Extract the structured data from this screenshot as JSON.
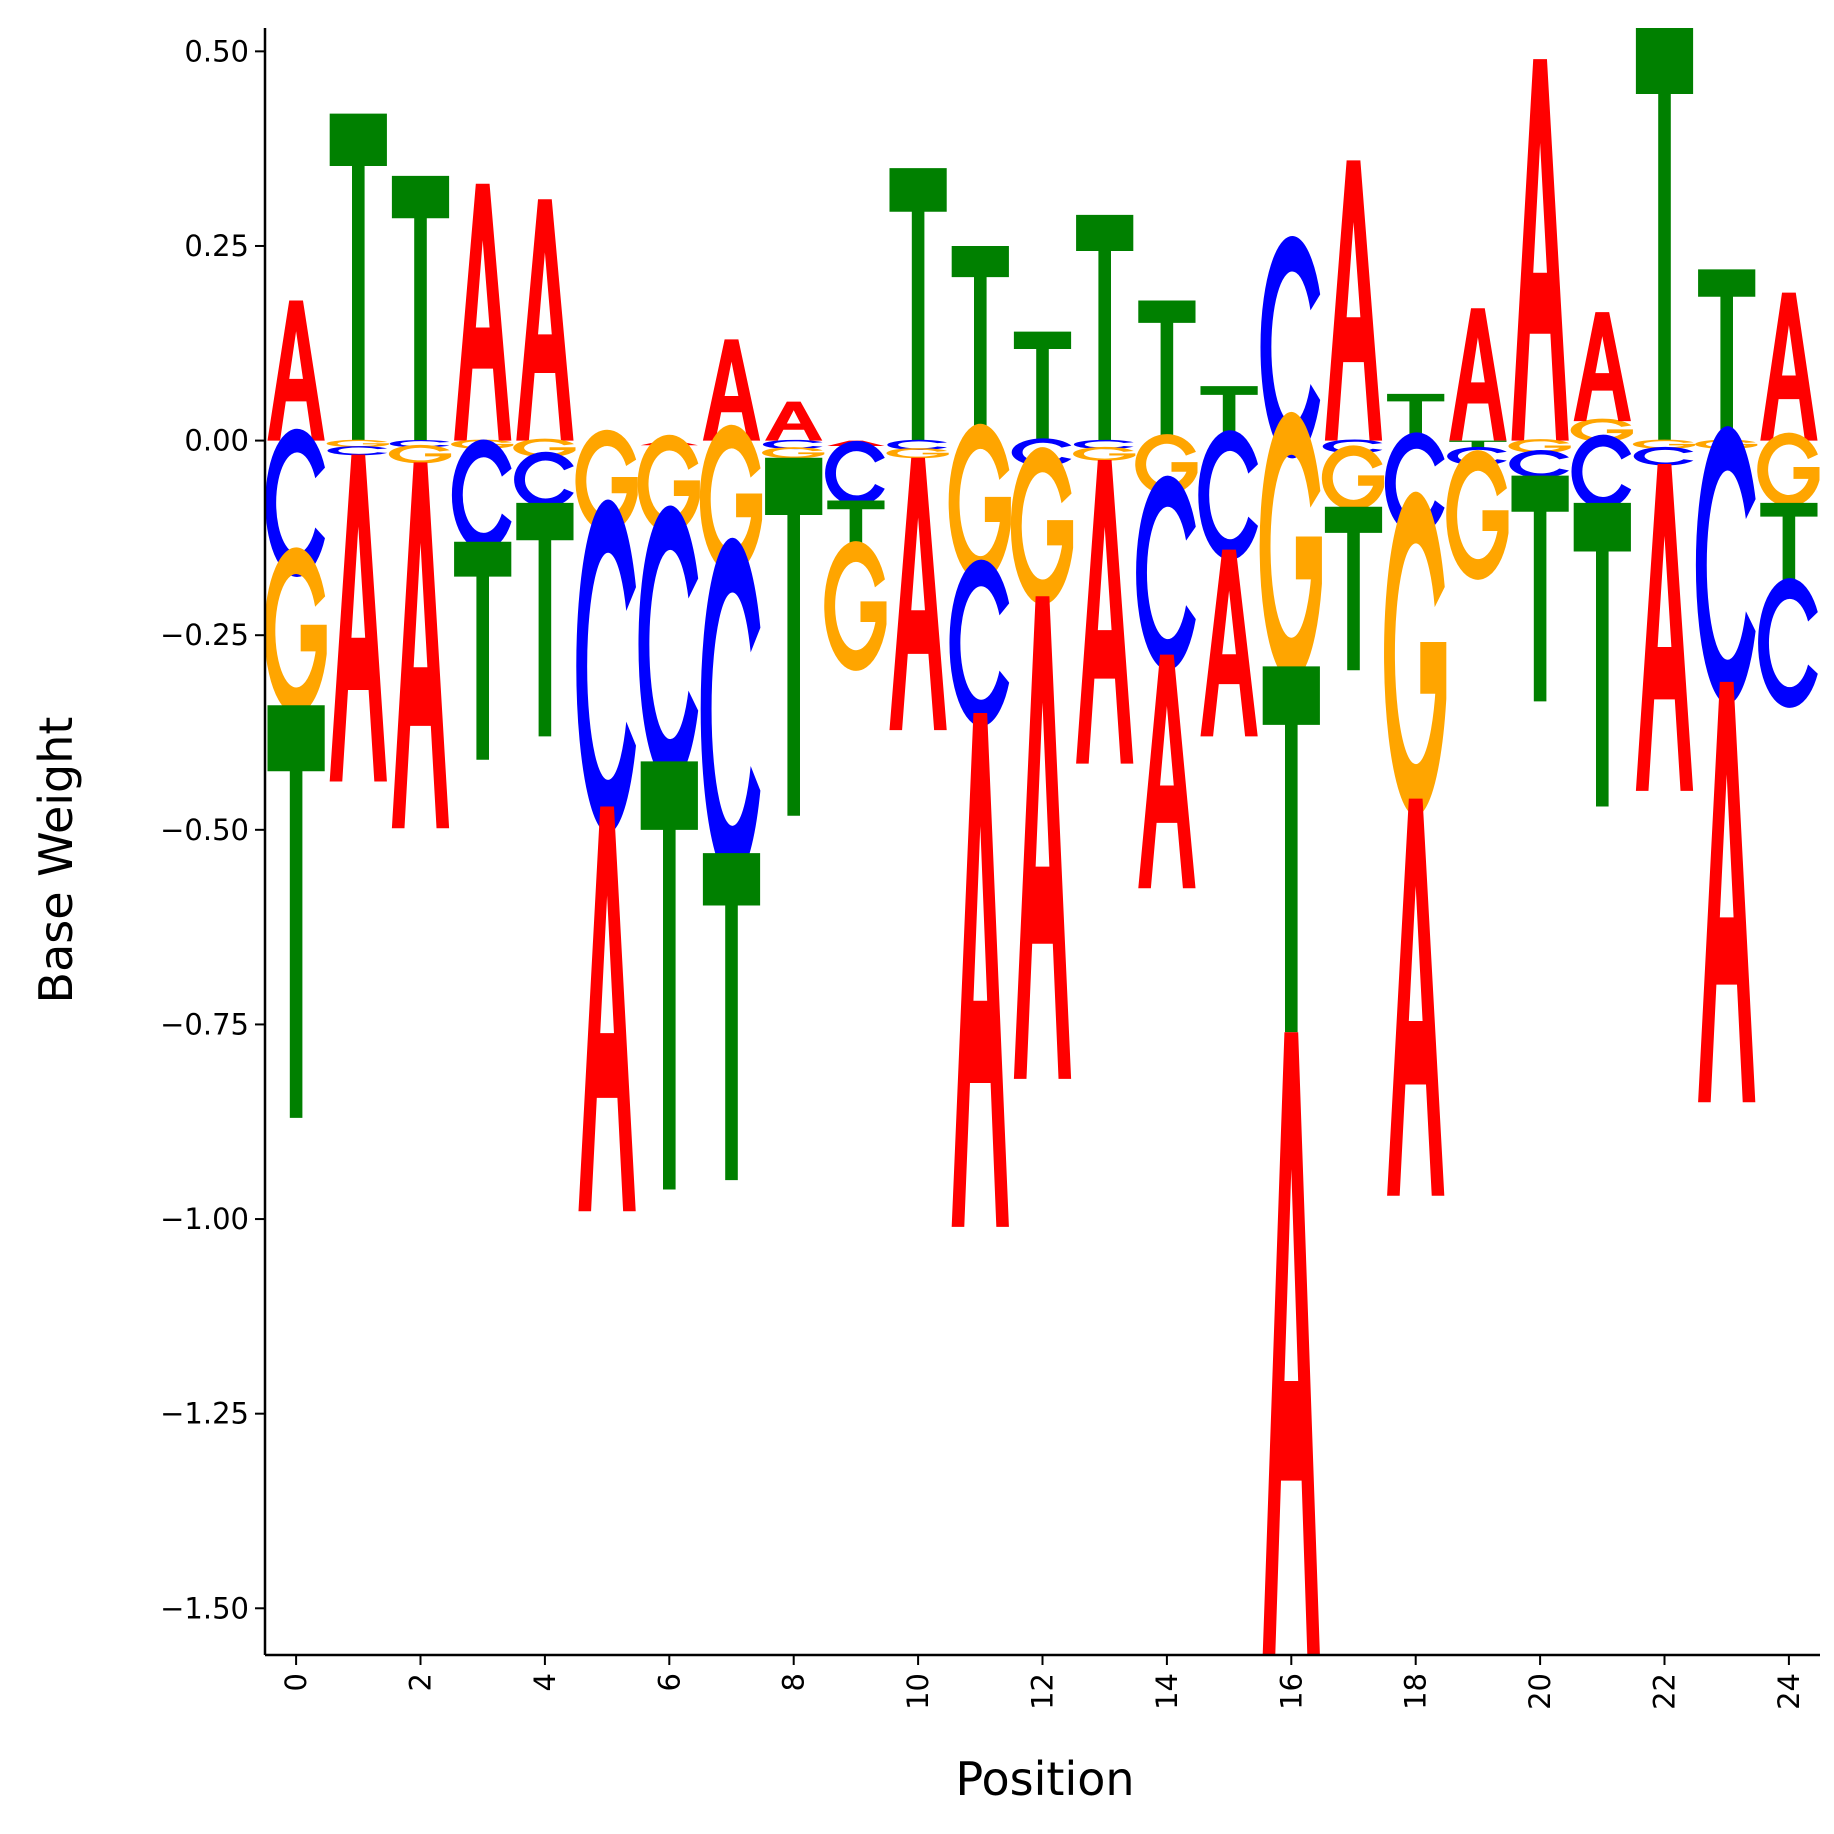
{
  "chart_data": {
    "type": "sequence-logo",
    "xlabel": "Position",
    "ylabel": "Base Weight",
    "xlim": [
      -0.5,
      24.5
    ],
    "ylim": [
      -1.56,
      0.53
    ],
    "x_ticks": [
      0,
      2,
      4,
      6,
      8,
      10,
      12,
      14,
      16,
      18,
      20,
      22,
      24
    ],
    "x_tick_labels": [
      "0",
      "2",
      "4",
      "6",
      "8",
      "10",
      "12",
      "14",
      "16",
      "18",
      "20",
      "22",
      "24"
    ],
    "y_ticks": [
      0.5,
      0.25,
      0.0,
      -0.25,
      -0.5,
      -0.75,
      -1.0,
      -1.25,
      -1.5
    ],
    "y_tick_labels": [
      "0.50",
      "0.25",
      "0.00",
      "−0.25",
      "−0.50",
      "−0.75",
      "−1.00",
      "−1.25",
      "−1.50"
    ],
    "colors": {
      "A": "#ff0000",
      "C": "#0000ff",
      "G": "#ffa500",
      "T": "#008000"
    },
    "positions": [
      {
        "pos": 0,
        "weights": {
          "A": 0.18,
          "C": -0.16,
          "G": -0.18,
          "T": -0.53
        }
      },
      {
        "pos": 1,
        "weights": {
          "A": -0.42,
          "C": -0.01,
          "G": -0.008,
          "T": 0.42
        }
      },
      {
        "pos": 2,
        "weights": {
          "A": -0.47,
          "C": -0.008,
          "G": -0.02,
          "T": 0.34
        }
      },
      {
        "pos": 3,
        "weights": {
          "A": 0.33,
          "C": -0.12,
          "G": -0.01,
          "T": -0.28
        }
      },
      {
        "pos": 4,
        "weights": {
          "A": 0.31,
          "C": -0.06,
          "G": -0.02,
          "T": -0.3
        }
      },
      {
        "pos": 5,
        "weights": {
          "A": -0.52,
          "C": -0.36,
          "G": -0.11,
          "T": 0.0
        }
      },
      {
        "pos": 6,
        "weights": {
          "A": -0.006,
          "C": -0.3,
          "G": -0.106,
          "T": -0.55
        }
      },
      {
        "pos": 7,
        "weights": {
          "A": 0.13,
          "C": -0.37,
          "G": -0.16,
          "T": -0.42
        }
      },
      {
        "pos": 8,
        "weights": {
          "A": 0.05,
          "C": -0.01,
          "G": -0.012,
          "T": -0.46
        }
      },
      {
        "pos": 9,
        "weights": {
          "A": -0.007,
          "C": -0.07,
          "G": -0.14,
          "T": -0.07
        }
      },
      {
        "pos": 10,
        "weights": {
          "A": -0.35,
          "C": -0.011,
          "G": -0.011,
          "T": 0.35
        }
      },
      {
        "pos": 11,
        "weights": {
          "A": -0.66,
          "C": -0.18,
          "G": -0.17,
          "T": 0.25
        }
      },
      {
        "pos": 12,
        "weights": {
          "A": -0.62,
          "C": -0.03,
          "G": -0.17,
          "T": 0.14
        }
      },
      {
        "pos": 13,
        "weights": {
          "A": -0.39,
          "C": -0.01,
          "G": -0.015,
          "T": 0.29
        }
      },
      {
        "pos": 14,
        "weights": {
          "A": -0.3,
          "C": -0.21,
          "G": -0.065,
          "T": 0.18
        }
      },
      {
        "pos": 15,
        "weights": {
          "A": -0.24,
          "C": -0.14,
          "G": 0.0,
          "T": 0.07
        }
      },
      {
        "pos": 16,
        "weights": {
          "A": -0.8,
          "C": 0.24,
          "G": -0.29,
          "T": -0.47
        }
      },
      {
        "pos": 17,
        "weights": {
          "A": 0.36,
          "C": -0.015,
          "G": -0.07,
          "T": -0.21
        }
      },
      {
        "pos": 18,
        "weights": {
          "A": -0.51,
          "C": -0.11,
          "G": -0.35,
          "T": 0.06
        }
      },
      {
        "pos": 19,
        "weights": {
          "A": 0.17,
          "C": -0.02,
          "G": -0.14,
          "T": -0.01
        }
      },
      {
        "pos": 20,
        "weights": {
          "A": 0.49,
          "C": -0.03,
          "G": -0.015,
          "T": -0.29
        }
      },
      {
        "pos": 21,
        "weights": {
          "A": 0.14,
          "C": -0.08,
          "G": 0.025,
          "T": -0.39
        }
      },
      {
        "pos": 22,
        "weights": {
          "A": -0.42,
          "C": -0.02,
          "G": -0.01,
          "T": 0.53
        }
      },
      {
        "pos": 23,
        "weights": {
          "A": -0.54,
          "C": -0.3,
          "G": -0.01,
          "T": 0.22
        }
      },
      {
        "pos": 24,
        "weights": {
          "A": 0.19,
          "C": -0.14,
          "G": -0.08,
          "T": -0.11
        }
      }
    ]
  }
}
